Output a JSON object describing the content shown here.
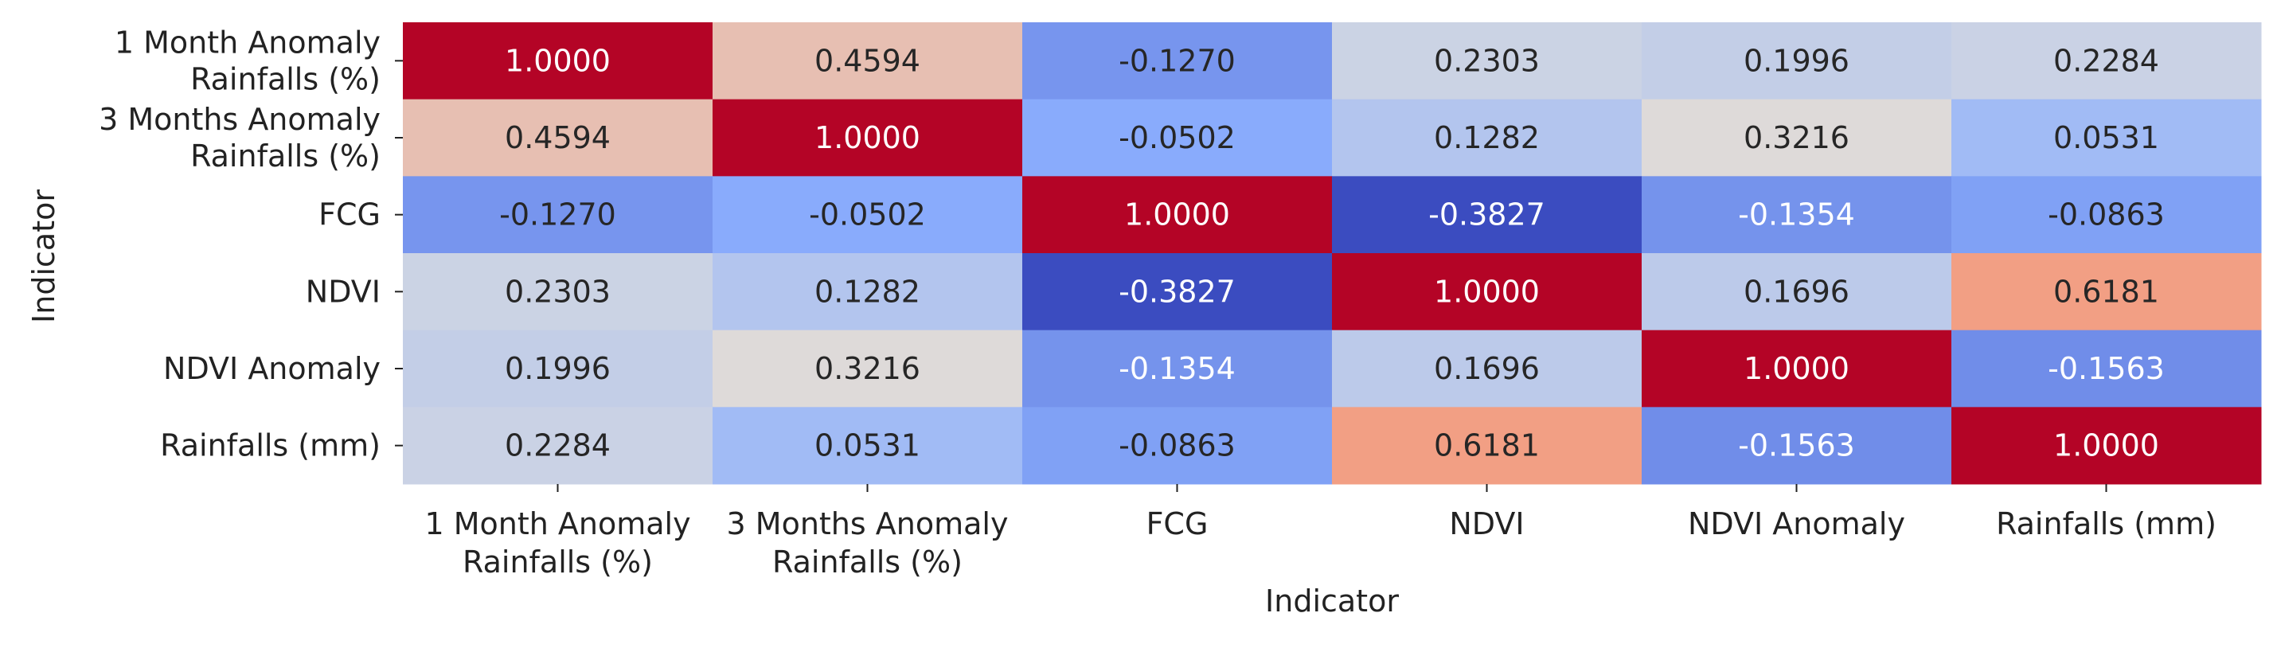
{
  "chart_data": {
    "type": "heatmap",
    "title": "",
    "xlabel": "Indicator",
    "ylabel": "Indicator",
    "x_categories": [
      [
        "1 Month Anomaly",
        "Rainfalls (%)"
      ],
      [
        "3 Months Anomaly",
        "Rainfalls (%)"
      ],
      [
        "FCG"
      ],
      [
        "NDVI"
      ],
      [
        "NDVI Anomaly"
      ],
      [
        "Rainfalls (mm)"
      ]
    ],
    "y_categories": [
      [
        "1 Month Anomaly",
        "Rainfalls (%)"
      ],
      [
        "3 Months Anomaly",
        "Rainfalls (%)"
      ],
      [
        "FCG"
      ],
      [
        "NDVI"
      ],
      [
        "NDVI Anomaly"
      ],
      [
        "Rainfalls (mm)"
      ]
    ],
    "values": [
      [
        1.0,
        0.4594,
        -0.127,
        0.2303,
        0.1996,
        0.2284
      ],
      [
        0.4594,
        1.0,
        -0.0502,
        0.1282,
        0.3216,
        0.0531
      ],
      [
        -0.127,
        -0.0502,
        1.0,
        -0.3827,
        -0.1354,
        -0.0863
      ],
      [
        0.2303,
        0.1282,
        -0.3827,
        1.0,
        0.1696,
        0.6181
      ],
      [
        0.1996,
        0.3216,
        -0.1354,
        0.1696,
        1.0,
        -0.1563
      ],
      [
        0.2284,
        0.0531,
        -0.0863,
        0.6181,
        -0.1563,
        1.0
      ]
    ],
    "value_format_decimals": 4,
    "colormap": "coolwarm",
    "color_range": [
      -0.3827,
      1.0
    ],
    "colorbar": false,
    "annotations": true,
    "grid": false
  }
}
